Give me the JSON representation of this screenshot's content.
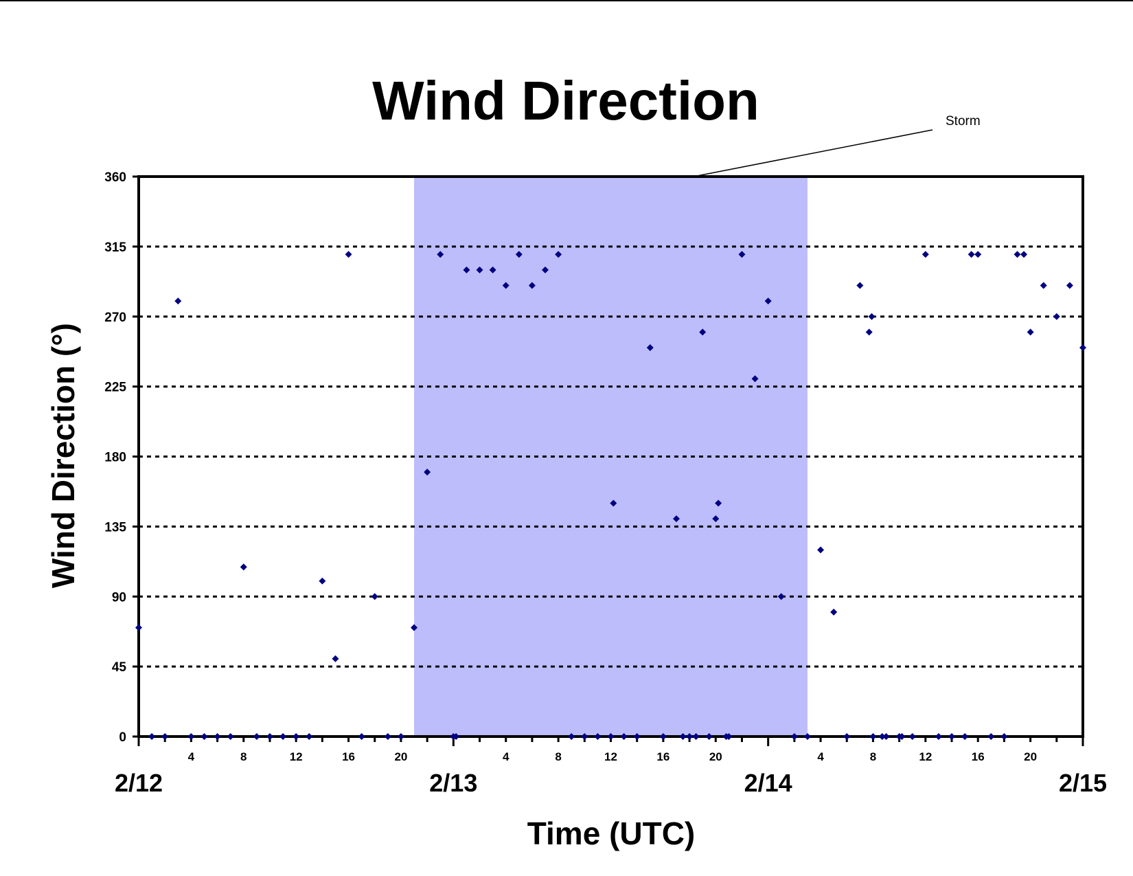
{
  "chart_data": {
    "type": "scatter",
    "title": "Wind Direction",
    "xlabel": "Time (UTC)",
    "ylabel": "Wind Direction (°)",
    "x_unit": "hours after 2/12 00 UTC",
    "xlim": [
      0,
      72
    ],
    "ylim": [
      0,
      360
    ],
    "yticks": [
      0,
      45,
      90,
      135,
      180,
      225,
      270,
      315,
      360
    ],
    "grid": "dashed horizontal",
    "hour_tick_labels": [
      "4",
      "8",
      "12",
      "16",
      "20"
    ],
    "date_labels": [
      "2/12",
      "2/13",
      "2/14",
      "2/15"
    ],
    "annotation": {
      "label": "Storm",
      "x_range": [
        21,
        51
      ]
    },
    "colors": {
      "points": "#000080",
      "storm_fill": "#bdbdfc",
      "grid": "#000000"
    },
    "series": [
      {
        "name": "",
        "points": [
          [
            0,
            70
          ],
          [
            1,
            0
          ],
          [
            2,
            0
          ],
          [
            3,
            280
          ],
          [
            4,
            0
          ],
          [
            5,
            0
          ],
          [
            6,
            0
          ],
          [
            7,
            0
          ],
          [
            8,
            109
          ],
          [
            9,
            0
          ],
          [
            10,
            0
          ],
          [
            11,
            0
          ],
          [
            12,
            0
          ],
          [
            13,
            0
          ],
          [
            14,
            100
          ],
          [
            15,
            50
          ],
          [
            16,
            310
          ],
          [
            17,
            0
          ],
          [
            18,
            90
          ],
          [
            19,
            0
          ],
          [
            20,
            0
          ],
          [
            21,
            70
          ],
          [
            22,
            170
          ],
          [
            23,
            310
          ],
          [
            24,
            0
          ],
          [
            24.2,
            0
          ],
          [
            25,
            300
          ],
          [
            26,
            300
          ],
          [
            27,
            300
          ],
          [
            28,
            290
          ],
          [
            29,
            310
          ],
          [
            30,
            290
          ],
          [
            31,
            300
          ],
          [
            32,
            310
          ],
          [
            33,
            0
          ],
          [
            34,
            0
          ],
          [
            35,
            0
          ],
          [
            36,
            0
          ],
          [
            36.2,
            150
          ],
          [
            37,
            0
          ],
          [
            38,
            0
          ],
          [
            39,
            250
          ],
          [
            40,
            0
          ],
          [
            41,
            140
          ],
          [
            41.5,
            0
          ],
          [
            42,
            0
          ],
          [
            42.5,
            0
          ],
          [
            43,
            260
          ],
          [
            43.5,
            0
          ],
          [
            44,
            140
          ],
          [
            44.2,
            150
          ],
          [
            44.8,
            0
          ],
          [
            45,
            0
          ],
          [
            46,
            310
          ],
          [
            47,
            230
          ],
          [
            48,
            280
          ],
          [
            49,
            90
          ],
          [
            50,
            0
          ],
          [
            51,
            0
          ],
          [
            52,
            120
          ],
          [
            53,
            80
          ],
          [
            54,
            0
          ],
          [
            55,
            290
          ],
          [
            55.7,
            260
          ],
          [
            55.9,
            270
          ],
          [
            56,
            0
          ],
          [
            56.7,
            0
          ],
          [
            57,
            0
          ],
          [
            58,
            0
          ],
          [
            58.2,
            0
          ],
          [
            59,
            0
          ],
          [
            60,
            310
          ],
          [
            61,
            0
          ],
          [
            62,
            0
          ],
          [
            63,
            0
          ],
          [
            63.5,
            310
          ],
          [
            64,
            310
          ],
          [
            65,
            0
          ],
          [
            66,
            0
          ],
          [
            67,
            310
          ],
          [
            67.5,
            310
          ],
          [
            68,
            260
          ],
          [
            69,
            290
          ],
          [
            70,
            270
          ],
          [
            71,
            290
          ],
          [
            72,
            250
          ]
        ]
      }
    ]
  }
}
